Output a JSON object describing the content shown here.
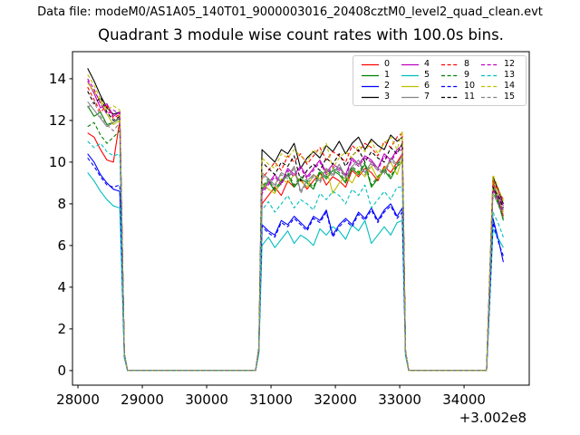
{
  "figure": {
    "data_file_label": "Data file: modeM0/AS1A05_140T01_9000003016_20408cztM0_level2_quad_clean.evt",
    "background": "#ffffff",
    "axis_color": "#000000"
  },
  "chart_data": {
    "type": "line",
    "title": "Quadrant 3 module wise count rates with 100.0s bins.",
    "xlabel": "",
    "ylabel": "",
    "x_offset_label": "+3.002e8",
    "x_offset_value": 300200000,
    "xlim": [
      27915,
      35013
    ],
    "ylim": [
      -0.7,
      15.3
    ],
    "x_ticks": [
      28000,
      29000,
      30000,
      31000,
      32000,
      33000,
      34000
    ],
    "y_ticks": [
      0,
      2,
      4,
      6,
      8,
      10,
      12,
      14
    ],
    "grid": false,
    "legend": {
      "position": "upper right",
      "ncol": 4,
      "labels": [
        "0",
        "1",
        "2",
        "3",
        "4",
        "5",
        "6",
        "7",
        "8",
        "9",
        "10",
        "11",
        "12",
        "13",
        "14",
        "15"
      ]
    },
    "x": [
      28150,
      28250,
      28350,
      28450,
      28550,
      28650,
      28720,
      28770,
      30760,
      30810,
      30860,
      30960,
      31060,
      31160,
      31260,
      31360,
      31460,
      31560,
      31660,
      31760,
      31860,
      31960,
      32060,
      32160,
      32260,
      32360,
      32460,
      32560,
      32660,
      32760,
      32860,
      32960,
      33040,
      33090,
      33140,
      34350,
      34400,
      34450,
      34540,
      34610
    ],
    "series": [
      {
        "name": "0",
        "color": "#ff0000",
        "style": "solid",
        "values": [
          11.4,
          11.2,
          10.6,
          10.1,
          10.0,
          12.0,
          0.8,
          0,
          0,
          1.0,
          8.0,
          8.4,
          8.8,
          8.4,
          9.1,
          8.8,
          9.2,
          8.7,
          9.1,
          9.5,
          8.9,
          9.3,
          9.1,
          8.8,
          9.6,
          9.3,
          9.7,
          9.5,
          9.1,
          9.8,
          9.5,
          10.0,
          10.4,
          0.9,
          0,
          0,
          4.5,
          8.9,
          8.1,
          7.4
        ]
      },
      {
        "name": "1",
        "color": "#008000",
        "style": "solid",
        "values": [
          12.7,
          12.2,
          12.4,
          11.8,
          11.9,
          12.1,
          0.8,
          0,
          0,
          1.0,
          8.7,
          9.1,
          8.6,
          9.0,
          9.4,
          8.8,
          9.2,
          9.0,
          8.7,
          9.5,
          9.2,
          9.6,
          9.4,
          9.0,
          9.7,
          9.4,
          9.9,
          8.8,
          9.2,
          9.6,
          9.2,
          9.8,
          10.0,
          0.9,
          0,
          0,
          4.4,
          8.8,
          8.0,
          7.2
        ]
      },
      {
        "name": "2",
        "color": "#0000ff",
        "style": "solid",
        "values": [
          10.4,
          10.0,
          9.4,
          9.0,
          8.7,
          8.6,
          0.7,
          0,
          0,
          0.9,
          7.0,
          6.7,
          6.5,
          7.2,
          7.0,
          7.4,
          7.1,
          6.8,
          7.4,
          7.2,
          7.7,
          6.5,
          7.0,
          7.3,
          7.0,
          7.6,
          7.3,
          7.8,
          7.2,
          7.7,
          8.0,
          7.4,
          7.8,
          0.8,
          0,
          0,
          3.6,
          7.3,
          6.2,
          5.2
        ]
      },
      {
        "name": "3",
        "color": "#000000",
        "style": "solid",
        "values": [
          14.5,
          13.9,
          13.2,
          12.6,
          12.3,
          12.4,
          0.8,
          0,
          0,
          1.1,
          10.6,
          10.3,
          10.0,
          10.6,
          10.4,
          10.9,
          9.7,
          10.2,
          10.5,
          10.2,
          10.8,
          10.5,
          11.0,
          10.4,
          10.9,
          11.2,
          10.6,
          11.1,
          10.8,
          10.6,
          11.3,
          11.0,
          11.2,
          0.9,
          0,
          0,
          4.7,
          9.3,
          8.6,
          8.0
        ]
      },
      {
        "name": "4",
        "color": "#bf00bf",
        "style": "solid",
        "values": [
          13.9,
          13.3,
          12.6,
          12.8,
          12.2,
          12.4,
          0.8,
          0,
          0,
          1.0,
          8.6,
          9.0,
          9.4,
          9.0,
          9.7,
          9.4,
          9.8,
          9.3,
          9.7,
          10.1,
          9.5,
          9.9,
          9.7,
          9.4,
          10.2,
          9.9,
          10.3,
          10.1,
          9.7,
          10.4,
          10.1,
          10.6,
          10.8,
          0.9,
          0,
          0,
          4.5,
          9.0,
          8.4,
          7.9
        ]
      },
      {
        "name": "5",
        "color": "#00bfbf",
        "style": "solid",
        "values": [
          9.5,
          9.1,
          8.6,
          8.2,
          7.9,
          7.8,
          0.6,
          0,
          0,
          0.8,
          6.0,
          6.4,
          5.9,
          6.3,
          6.7,
          6.1,
          6.5,
          6.3,
          6.0,
          6.8,
          6.5,
          6.9,
          6.7,
          6.3,
          7.0,
          6.7,
          7.2,
          6.1,
          6.5,
          6.9,
          6.5,
          7.1,
          7.2,
          0.7,
          0,
          0,
          3.4,
          6.8,
          6.3,
          5.9
        ]
      },
      {
        "name": "6",
        "color": "#bfbf00",
        "style": "solid",
        "values": [
          13.8,
          13.4,
          12.9,
          12.3,
          11.8,
          12.0,
          0.8,
          0,
          0,
          1.0,
          9.0,
          8.7,
          8.5,
          9.2,
          9.0,
          9.4,
          9.1,
          8.8,
          9.4,
          9.2,
          9.7,
          8.5,
          9.0,
          9.3,
          9.0,
          9.6,
          9.3,
          9.8,
          9.2,
          9.7,
          10.0,
          9.4,
          10.2,
          0.9,
          0,
          0,
          4.6,
          9.2,
          8.3,
          7.6
        ]
      },
      {
        "name": "7",
        "color": "#848484",
        "style": "solid",
        "values": [
          12.9,
          12.5,
          12.1,
          11.7,
          11.9,
          12.2,
          0.8,
          0,
          0,
          1.0,
          9.5,
          9.2,
          8.9,
          9.5,
          9.3,
          9.8,
          8.6,
          9.1,
          9.4,
          9.1,
          9.7,
          9.4,
          9.9,
          9.3,
          9.8,
          10.1,
          9.5,
          10.0,
          9.7,
          9.5,
          10.2,
          9.9,
          10.3,
          0.9,
          0,
          0,
          4.5,
          8.9,
          8.2,
          7.7
        ]
      },
      {
        "name": "8",
        "color": "#ff0000",
        "style": "dashed",
        "values": [
          13.6,
          13.0,
          12.4,
          12.7,
          12.1,
          12.3,
          0.8,
          0,
          0,
          1.0,
          9.2,
          9.6,
          10.0,
          9.6,
          10.3,
          10.0,
          10.4,
          9.9,
          10.3,
          10.7,
          10.1,
          10.5,
          10.3,
          10.0,
          10.8,
          10.5,
          10.9,
          10.7,
          10.3,
          11.0,
          10.7,
          11.2,
          11.4,
          0.9,
          0,
          0,
          4.6,
          9.1,
          8.6,
          8.2
        ]
      },
      {
        "name": "9",
        "color": "#008000",
        "style": "dashed",
        "values": [
          11.7,
          11.9,
          11.3,
          10.9,
          11.2,
          11.5,
          0.8,
          0,
          0,
          1.0,
          8.8,
          9.2,
          8.7,
          9.1,
          9.5,
          8.9,
          9.3,
          9.1,
          8.8,
          9.6,
          9.3,
          9.7,
          9.5,
          9.1,
          9.8,
          9.5,
          10.0,
          8.9,
          9.3,
          9.7,
          9.3,
          9.9,
          10.1,
          0.9,
          0,
          0,
          4.3,
          8.6,
          7.9,
          7.3
        ]
      },
      {
        "name": "10",
        "color": "#0000ff",
        "style": "dashed",
        "values": [
          10.2,
          9.8,
          9.3,
          8.9,
          8.8,
          8.9,
          0.7,
          0,
          0,
          0.9,
          6.9,
          6.6,
          6.4,
          7.1,
          6.9,
          7.3,
          7.0,
          6.7,
          7.3,
          7.1,
          7.6,
          6.4,
          6.9,
          7.2,
          6.9,
          7.5,
          7.2,
          7.7,
          7.1,
          7.6,
          7.9,
          7.3,
          7.6,
          0.8,
          0,
          0,
          3.5,
          7.1,
          6.1,
          5.5
        ]
      },
      {
        "name": "11",
        "color": "#000000",
        "style": "dashed",
        "values": [
          13.4,
          12.8,
          13.1,
          12.4,
          12.0,
          12.2,
          0.8,
          0,
          0,
          1.0,
          10.0,
          9.7,
          9.4,
          10.0,
          9.8,
          10.3,
          9.1,
          9.6,
          9.9,
          9.6,
          10.2,
          9.9,
          10.4,
          9.8,
          10.3,
          10.6,
          10.0,
          10.5,
          10.2,
          10.0,
          10.7,
          10.4,
          10.9,
          0.9,
          0,
          0,
          4.4,
          8.8,
          8.3,
          7.8
        ]
      },
      {
        "name": "12",
        "color": "#bf00bf",
        "style": "dashed",
        "values": [
          14.0,
          13.5,
          12.8,
          12.3,
          12.5,
          12.3,
          0.8,
          0,
          0,
          1.0,
          8.5,
          8.9,
          9.3,
          8.9,
          9.6,
          9.3,
          9.7,
          9.2,
          9.6,
          10.0,
          9.4,
          9.8,
          9.6,
          9.3,
          10.1,
          9.8,
          10.2,
          10.0,
          9.6,
          10.3,
          10.0,
          10.5,
          10.6,
          0.9,
          0,
          0,
          4.4,
          8.7,
          8.1,
          7.6
        ]
      },
      {
        "name": "13",
        "color": "#00bfbf",
        "style": "dashed",
        "values": [
          11.0,
          10.7,
          10.9,
          10.5,
          10.3,
          10.4,
          0.7,
          0,
          0,
          0.9,
          7.7,
          8.1,
          7.6,
          8.0,
          8.4,
          7.8,
          8.2,
          8.0,
          7.7,
          8.5,
          8.2,
          8.6,
          8.4,
          8.0,
          8.7,
          8.4,
          8.9,
          7.8,
          8.2,
          8.6,
          8.2,
          8.8,
          8.8,
          0.8,
          0,
          0,
          3.8,
          7.6,
          7.0,
          6.4
        ]
      },
      {
        "name": "14",
        "color": "#bfbf00",
        "style": "dashed",
        "values": [
          14.2,
          13.7,
          13.0,
          12.5,
          12.7,
          12.5,
          0.8,
          0,
          0,
          1.0,
          10.2,
          9.9,
          9.7,
          10.4,
          10.2,
          10.6,
          10.3,
          10.0,
          10.6,
          10.4,
          10.9,
          9.7,
          10.2,
          10.5,
          10.2,
          10.8,
          10.5,
          11.0,
          10.4,
          10.9,
          11.2,
          10.6,
          11.5,
          0.9,
          0,
          0,
          4.7,
          9.4,
          8.7,
          8.1
        ]
      },
      {
        "name": "15",
        "color": "#848484",
        "style": "dashed",
        "values": [
          12.6,
          12.9,
          12.2,
          11.8,
          11.5,
          11.9,
          0.8,
          0,
          0,
          1.0,
          9.4,
          9.1,
          8.8,
          9.4,
          9.2,
          9.7,
          8.5,
          9.0,
          9.3,
          9.0,
          9.6,
          9.3,
          9.8,
          9.2,
          9.7,
          10.0,
          9.4,
          9.9,
          9.6,
          9.4,
          10.1,
          9.8,
          10.4,
          0.9,
          0,
          0,
          4.3,
          8.5,
          7.9,
          7.5
        ]
      }
    ]
  }
}
